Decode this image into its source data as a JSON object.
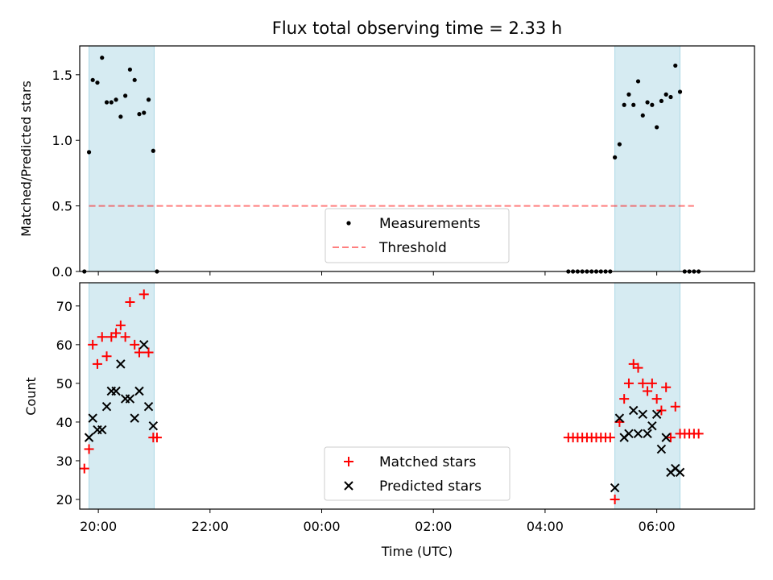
{
  "colors": {
    "span": "#add8e6",
    "threshold": "#ff0000",
    "measurement": "#000000",
    "matched": "#ff0000",
    "predicted": "#000000"
  },
  "chart_data": [
    {
      "type": "scatter",
      "title": "Flux total observing time = 2.33 h",
      "xlabel": "",
      "ylabel": "Matched/Predicted stars",
      "ylim": [
        0,
        1.72
      ],
      "yticks": [
        0,
        0.5,
        1.0,
        1.5
      ],
      "ytick_labels": [
        "0.0",
        "0.5",
        "1.0",
        "1.5"
      ],
      "legend_position": "bottom-center",
      "legend": [
        "Measurements",
        "Threshold"
      ],
      "threshold": {
        "value": 0.5,
        "x_start": "19:50",
        "x_end": "06:40"
      },
      "observing_windows": [
        [
          "19:50",
          "21:00"
        ],
        [
          "05:15",
          "06:25"
        ]
      ],
      "series": [
        {
          "name": "Measurements",
          "marker": "dot",
          "x": [
            "19:45",
            "19:50",
            "19:54",
            "19:59",
            "20:04",
            "20:09",
            "20:14",
            "20:19",
            "20:24",
            "20:29",
            "20:34",
            "20:39",
            "20:44",
            "20:49",
            "20:54",
            "20:59",
            "21:03",
            "04:25",
            "04:30",
            "04:35",
            "04:40",
            "04:45",
            "04:50",
            "04:55",
            "05:00",
            "05:05",
            "05:10",
            "05:15",
            "05:20",
            "05:25",
            "05:30",
            "05:35",
            "05:40",
            "05:45",
            "05:50",
            "05:55",
            "06:00",
            "06:05",
            "06:10",
            "06:15",
            "06:20",
            "06:25",
            "06:30",
            "06:35",
            "06:40",
            "06:45"
          ],
          "y": [
            0.0,
            0.91,
            1.46,
            1.44,
            1.63,
            1.29,
            1.29,
            1.31,
            1.18,
            1.34,
            1.54,
            1.46,
            1.2,
            1.21,
            1.31,
            0.92,
            0.0,
            0.0,
            0.0,
            0.0,
            0.0,
            0.0,
            0.0,
            0.0,
            0.0,
            0.0,
            0.0,
            0.87,
            0.97,
            1.27,
            1.35,
            1.27,
            1.45,
            1.19,
            1.29,
            1.27,
            1.1,
            1.3,
            1.35,
            1.33,
            1.57,
            1.37,
            0.0,
            0.0,
            0.0,
            0.0
          ]
        }
      ]
    },
    {
      "type": "scatter",
      "title": "",
      "xlabel": "Time (UTC)",
      "ylabel": "Count",
      "ylim": [
        17.5,
        76
      ],
      "yticks": [
        20,
        30,
        40,
        50,
        60,
        70
      ],
      "ytick_labels": [
        "20",
        "30",
        "40",
        "50",
        "60",
        "70"
      ],
      "xticks": [
        "20:00",
        "22:00",
        "00:00",
        "02:00",
        "04:00",
        "06:00"
      ],
      "legend_position": "bottom-center",
      "legend": [
        "Matched stars",
        "Predicted stars"
      ],
      "observing_windows": [
        [
          "19:50",
          "21:00"
        ],
        [
          "05:15",
          "06:25"
        ]
      ],
      "series": [
        {
          "name": "Matched stars",
          "marker": "plus",
          "x": [
            "19:45",
            "19:50",
            "19:54",
            "19:59",
            "20:04",
            "20:09",
            "20:14",
            "20:19",
            "20:24",
            "20:29",
            "20:34",
            "20:39",
            "20:44",
            "20:49",
            "20:54",
            "20:59",
            "21:03",
            "04:25",
            "04:30",
            "04:35",
            "04:40",
            "04:45",
            "04:50",
            "04:55",
            "05:00",
            "05:05",
            "05:10",
            "05:15",
            "05:20",
            "05:25",
            "05:30",
            "05:35",
            "05:40",
            "05:45",
            "05:50",
            "05:55",
            "06:00",
            "06:05",
            "06:10",
            "06:15",
            "06:20",
            "06:25",
            "06:30",
            "06:35",
            "06:40",
            "06:45"
          ],
          "y": [
            28,
            33,
            60,
            55,
            62,
            57,
            62,
            63,
            65,
            62,
            71,
            60,
            58,
            73,
            58,
            36,
            36,
            36,
            36,
            36,
            36,
            36,
            36,
            36,
            36,
            36,
            36,
            20,
            40,
            46,
            50,
            55,
            54,
            50,
            48,
            50,
            46,
            43,
            49,
            36,
            44,
            37,
            37,
            37,
            37,
            37
          ]
        },
        {
          "name": "Predicted stars",
          "marker": "x",
          "x": [
            "19:50",
            "19:54",
            "19:59",
            "20:04",
            "20:09",
            "20:14",
            "20:19",
            "20:24",
            "20:29",
            "20:34",
            "20:39",
            "20:44",
            "20:49",
            "20:54",
            "20:59",
            "05:15",
            "05:20",
            "05:25",
            "05:30",
            "05:35",
            "05:40",
            "05:45",
            "05:50",
            "05:55",
            "06:00",
            "06:05",
            "06:10",
            "06:15",
            "06:20",
            "06:25"
          ],
          "y": [
            36,
            41,
            38,
            38,
            44,
            48,
            48,
            55,
            46,
            46,
            41,
            48,
            60,
            44,
            39,
            23,
            41,
            36,
            37,
            43,
            37,
            42,
            37,
            39,
            42,
            33,
            36,
            27,
            28,
            27
          ]
        }
      ]
    }
  ]
}
